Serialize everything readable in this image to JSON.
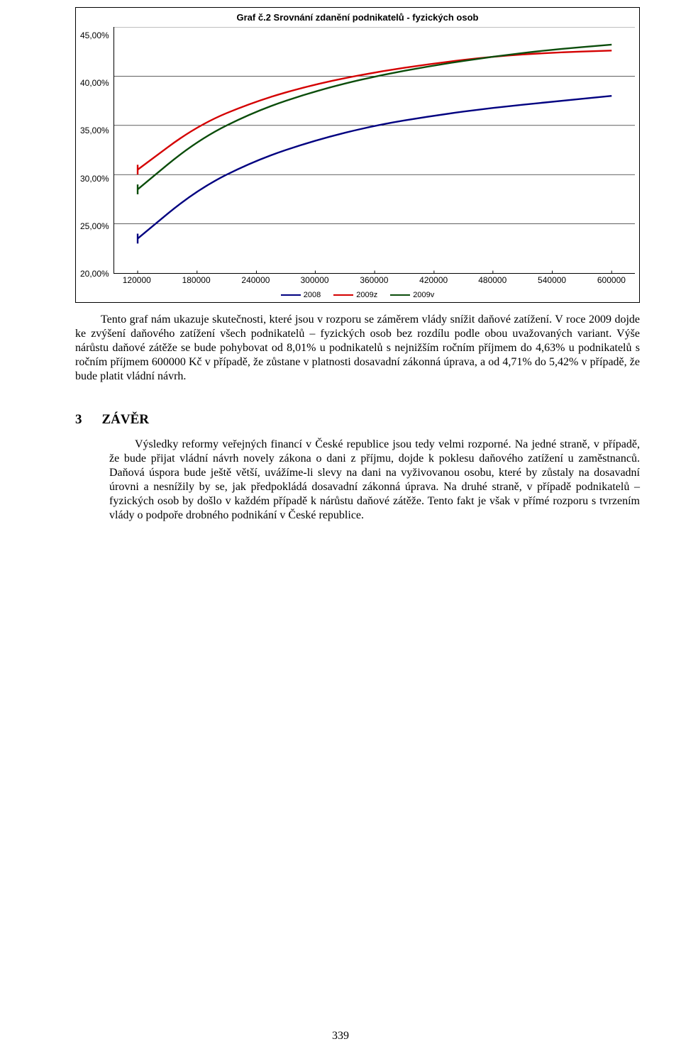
{
  "chart": {
    "type": "line",
    "title": "Graf č.2 Srovnání zdanění podnikatelů - fyzických osob",
    "title_fontsize": 13,
    "label_fontsize": 12,
    "legend_fontsize": 11,
    "background_color": "#ffffff",
    "grid_color": "#000000",
    "axis_color": "#000000",
    "ylim": [
      20,
      45
    ],
    "ytick_step": 5,
    "y_labels": [
      "45,00%",
      "40,00%",
      "35,00%",
      "30,00%",
      "25,00%",
      "20,00%"
    ],
    "x_labels": [
      "120000",
      "180000",
      "240000",
      "300000",
      "360000",
      "420000",
      "480000",
      "540000",
      "600000"
    ],
    "xlim": [
      120000,
      600000
    ],
    "x_positions_pct": [
      4.5,
      15.9,
      27.3,
      38.6,
      50.0,
      61.4,
      72.7,
      84.1,
      95.5
    ],
    "line_width": 2.4,
    "series": [
      {
        "name": "2008",
        "color": "#000080",
        "values": [
          23.5,
          28.5,
          31.5,
          33.5,
          35.0,
          36.0,
          36.8,
          37.4,
          38.0
        ]
      },
      {
        "name": "2009z",
        "color": "#d40000",
        "values": [
          30.5,
          35.0,
          37.5,
          39.2,
          40.4,
          41.3,
          42.0,
          42.4,
          42.6
        ]
      },
      {
        "name": "2009v",
        "color": "#0b4d0b",
        "values": [
          28.5,
          33.5,
          36.5,
          38.5,
          40.0,
          41.1,
          42.0,
          42.7,
          43.2
        ]
      }
    ]
  },
  "para1": "Tento graf nám ukazuje skutečnosti, které jsou v rozporu se záměrem vlády snížit daňové zatížení. V roce 2009 dojde ke zvýšení daňového zatížení všech podnikatelů – fyzických osob bez rozdílu podle obou uvažovaných variant. Výše nárůstu daňové zátěže se bude pohybovat od 8,01% u podnikatelů s nejnižším ročním příjmem do 4,63% u podnikatelů s ročním příjmem 600000 Kč v případě, že zůstane v platnosti dosavadní zákonná úprava, a od 4,71% do 5,42% v případě, že bude platit vládní návrh.",
  "section": {
    "num": "3",
    "title": "ZÁVĚR"
  },
  "para2": "Výsledky reformy veřejných financí v České republice jsou tedy velmi rozporné. Na jedné straně, v případě, že bude přijat vládní návrh novely zákona o dani z příjmu, dojde k poklesu daňového zatížení u zaměstnanců. Daňová úspora bude ještě větší, uvážíme-li slevy na dani na vyživovanou osobu, které by zůstaly na dosavadní úrovni a nesnížily by se, jak předpokládá dosavadní zákonná úprava. Na druhé straně, v případě podnikatelů – fyzických osob by došlo v každém případě k nárůstu daňové zátěže. Tento fakt je však v přímé rozporu s tvrzením vlády o podpoře drobného podnikání v České republice.",
  "page_number": "339"
}
